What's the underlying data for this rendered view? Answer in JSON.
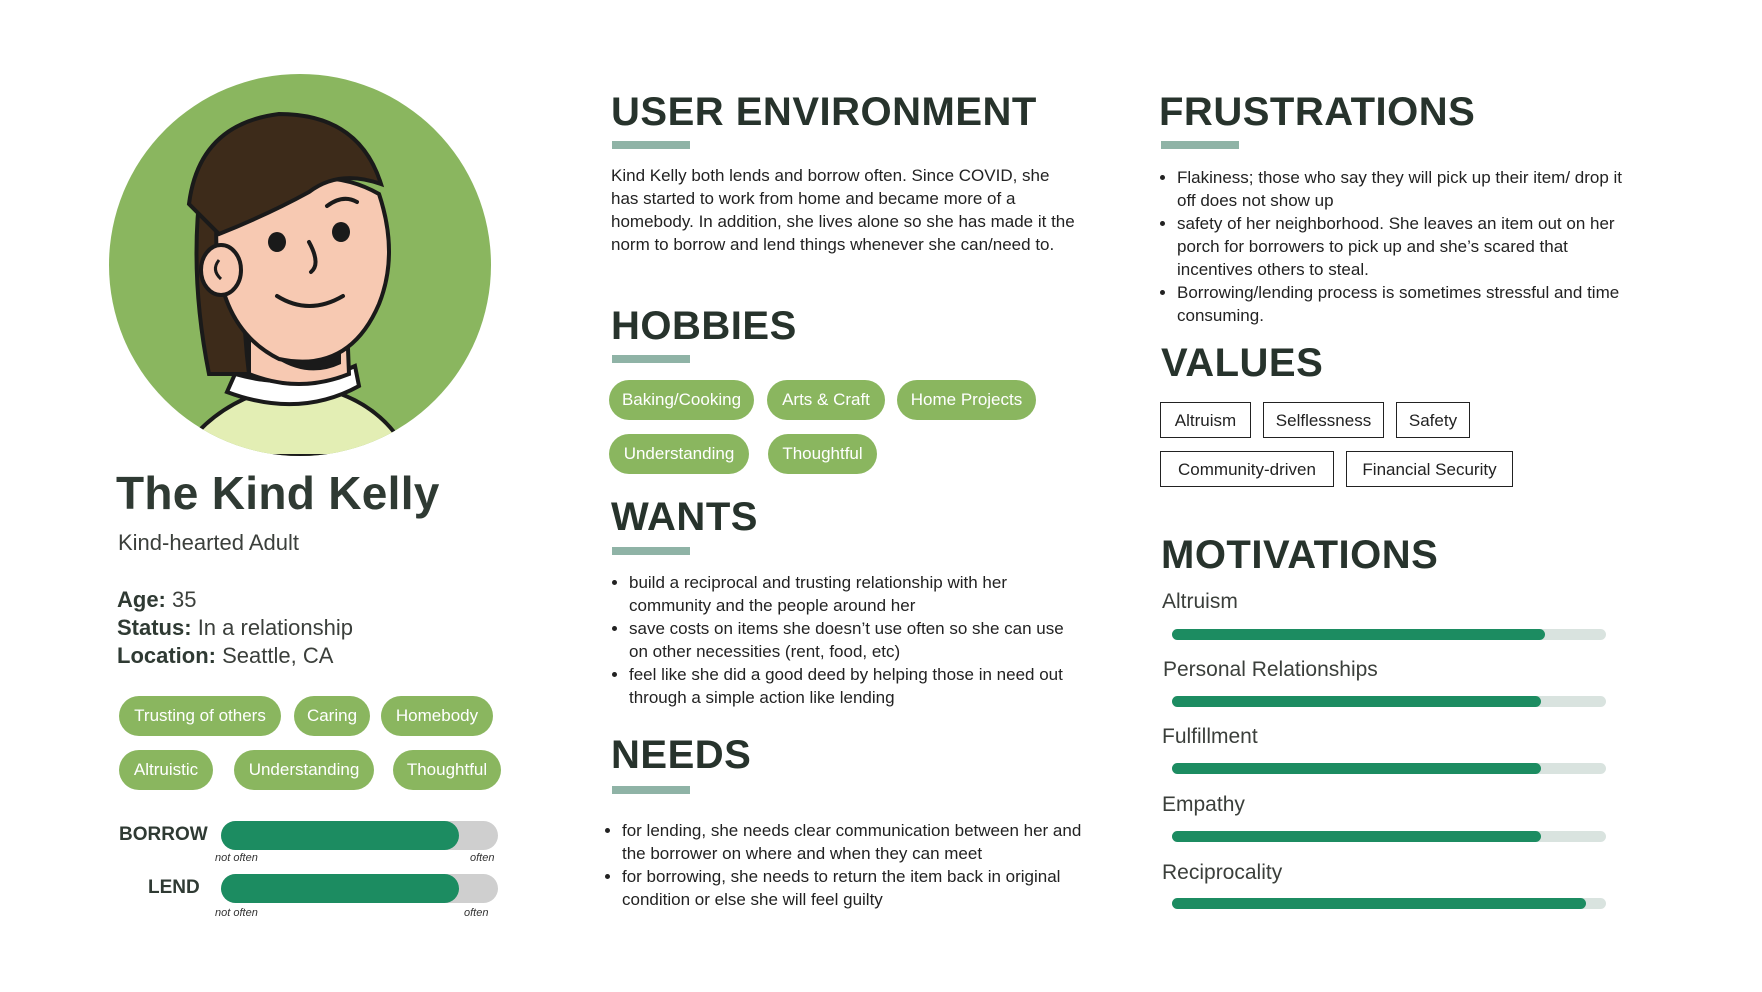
{
  "persona": {
    "name": "The Kind Kelly",
    "subtitle": "Kind-hearted Adult",
    "age_label": "Age:",
    "age": "35",
    "status_label": "Status:",
    "status": "In a relationship",
    "location_label": "Location:",
    "location": "Seattle, CA",
    "traits": [
      "Trusting of others",
      "Caring",
      "Homebody",
      "Altruistic",
      "Understanding",
      "Thoughtful"
    ]
  },
  "scales": [
    {
      "label": "BORROW",
      "min_label": "not often",
      "max_label": "often",
      "level": 0.86
    },
    {
      "label": "LEND",
      "min_label": "not often",
      "max_label": "often",
      "level": 0.86
    }
  ],
  "user_environment": {
    "title": "USER ENVIRONMENT",
    "text": "Kind Kelly both lends and borrow often. Since COVID, she has started to work from home and became more of a homebody. In addition, she lives alone so she has made it the norm to borrow and lend things whenever she can/need to."
  },
  "hobbies": {
    "title": "HOBBIES",
    "items": [
      "Baking/Cooking",
      "Arts & Craft",
      "Home Projects",
      "Understanding",
      "Thoughtful"
    ]
  },
  "wants": {
    "title": "WANTS",
    "items": [
      "build a reciprocal and trusting relationship with her community and the people around her",
      "save costs on items she doesn’t use often so she can use on other necessities (rent, food, etc)",
      "feel like she did a good deed by helping those in need out through a simple action like lending"
    ]
  },
  "needs": {
    "title": "NEEDS",
    "items": [
      "for lending, she needs clear communication between her and the borrower on where and when they can meet",
      "for borrowing, she needs to return the item back in original condition or else she will feel guilty"
    ]
  },
  "frustrations": {
    "title": "FRUSTRATIONS",
    "items": [
      "Flakiness; those who say they will pick up their item/ drop it off does not show up",
      "safety of her neighborhood. She leaves an item out on her porch for borrowers to pick up and she’s scared that incentives others to steal.",
      "Borrowing/lending process is sometimes stressful and time consuming."
    ]
  },
  "values": {
    "title": "VALUES",
    "items": [
      "Altruism",
      "Selflessness",
      "Safety",
      "Community-driven",
      "Financial Security"
    ]
  },
  "motivations": {
    "title": "MOTIVATIONS",
    "items": [
      {
        "label": "Altruism",
        "level": 0.86
      },
      {
        "label": "Personal Relationships",
        "level": 0.85
      },
      {
        "label": "Fulfillment",
        "level": 0.85
      },
      {
        "label": "Empathy",
        "level": 0.85
      },
      {
        "label": "Reciprocality",
        "level": 0.955
      }
    ]
  },
  "colors": {
    "accent_green": "#8ab65f",
    "bar_green": "#1c8c61",
    "underline": "#8fb3a6"
  }
}
